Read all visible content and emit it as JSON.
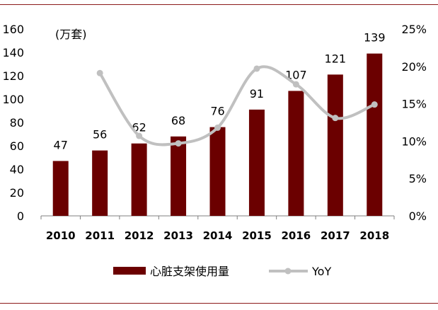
{
  "chart_data": {
    "type": "bar",
    "unit_label": "(万套)",
    "categories": [
      "2010",
      "2011",
      "2012",
      "2013",
      "2014",
      "2015",
      "2016",
      "2017",
      "2018"
    ],
    "series": [
      {
        "name": "心脏支架使用量",
        "type": "bar",
        "axis": "left",
        "color": "#6b0000",
        "values": [
          47,
          56,
          62,
          68,
          76,
          91,
          107,
          121,
          139
        ],
        "data_labels": [
          "47",
          "56",
          "62",
          "68",
          "76",
          "91",
          "107",
          "121",
          "139"
        ]
      },
      {
        "name": "YoY",
        "type": "line",
        "axis": "right",
        "color": "#c0c0c0",
        "smooth": true,
        "x": [
          "2011",
          "2012",
          "2013",
          "2014",
          "2015",
          "2016",
          "2017",
          "2018"
        ],
        "values": [
          19.1,
          10.7,
          9.7,
          11.8,
          19.7,
          17.6,
          13.1,
          14.9
        ]
      }
    ],
    "y_left": {
      "min": 0,
      "max": 160,
      "step": 20,
      "ticks": [
        "0",
        "20",
        "40",
        "60",
        "80",
        "100",
        "120",
        "140",
        "160"
      ]
    },
    "y_right": {
      "min": 0,
      "max": 25,
      "step": 5,
      "ticks": [
        "0%",
        "5%",
        "10%",
        "15%",
        "20%",
        "25%"
      ]
    },
    "grid": false,
    "legend_position": "bottom"
  }
}
